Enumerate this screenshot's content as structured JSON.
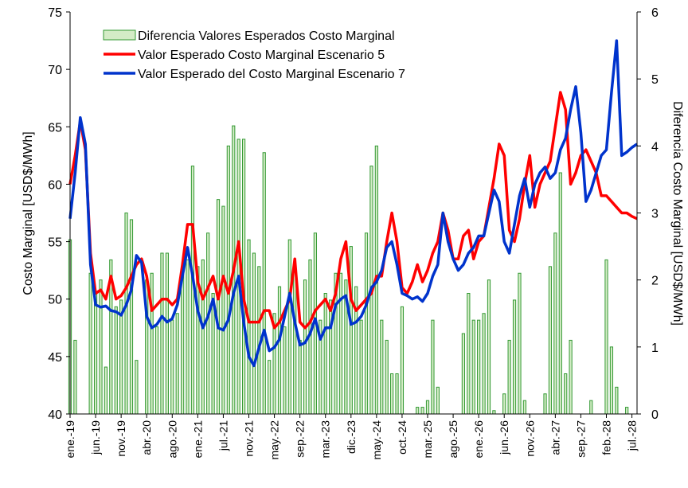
{
  "chart_data": {
    "type": "bar-line",
    "ylabel": "Costo Marginal [USD$/MWh]",
    "y2label": "Diferencia Costo Marginal [USD$/MWh]",
    "ylim": [
      40,
      75
    ],
    "yticks": [
      40,
      45,
      50,
      55,
      60,
      65,
      70,
      75
    ],
    "y2lim": [
      0,
      6
    ],
    "y2ticks": [
      0,
      1,
      2,
      3,
      4,
      5,
      6
    ],
    "grid": false,
    "legend": "upper left",
    "categories": [
      "ene.-19",
      null,
      null,
      null,
      null,
      "jun.-19",
      null,
      null,
      null,
      null,
      "nov.-19",
      null,
      null,
      null,
      null,
      "abr.-20",
      null,
      null,
      null,
      null,
      "ago.-20",
      null,
      null,
      null,
      null,
      "ene.-21",
      null,
      null,
      null,
      null,
      "jul.-21",
      null,
      null,
      null,
      null,
      "nov.-21",
      null,
      null,
      null,
      null,
      "may.-22",
      null,
      null,
      null,
      null,
      "sep.-22",
      null,
      null,
      null,
      null,
      "mar.-23",
      null,
      null,
      null,
      null,
      "dic.-23",
      null,
      null,
      null,
      null,
      "may.-24",
      null,
      null,
      null,
      null,
      "oct.-24",
      null,
      null,
      null,
      null,
      "mar.-25",
      null,
      null,
      null,
      null,
      "ago.-25",
      null,
      null,
      null,
      null,
      "ene.-26",
      null,
      null,
      null,
      null,
      "jun.-26",
      null,
      null,
      null,
      null,
      "nov.-26",
      null,
      null,
      null,
      null,
      "abr.-27",
      null,
      null,
      null,
      null,
      "sep.-27",
      null,
      null,
      null,
      null,
      "feb.-28",
      null,
      null,
      null,
      null,
      "jul.-28",
      null
    ],
    "series": [
      {
        "name": "Diferencia Valores Esperados Costo Marginal",
        "type": "bar",
        "axis": "y2",
        "color": "#339933",
        "values": [
          2.6,
          1.1,
          0,
          0,
          2.1,
          1.8,
          2.0,
          0.7,
          2.3,
          1.6,
          1.7,
          3.0,
          2.9,
          0.8,
          0,
          2.0,
          2.1,
          1.3,
          2.4,
          2.4,
          1.4,
          1.5,
          2.1,
          2.3,
          3.7,
          2.2,
          2.3,
          2.7,
          1.8,
          3.2,
          3.1,
          4.0,
          4.3,
          4.1,
          4.1,
          2.6,
          2.4,
          2.2,
          3.9,
          0.8,
          1.5,
          1.9,
          1.3,
          2.6,
          2.2,
          1.1,
          2.0,
          2.3,
          2.7,
          1.4,
          1.8,
          1.7,
          2.1,
          2.1,
          2.0,
          2.5,
          1.9,
          1.4,
          2.7,
          3.7,
          4.0,
          1.4,
          1.1,
          0.6,
          0.6,
          1.6,
          0,
          0,
          0.1,
          0.1,
          0.2,
          1.4,
          0.4,
          0,
          0,
          0,
          0,
          1.2,
          1.8,
          1.4,
          1.4,
          1.5,
          2.0,
          0.05,
          0,
          0.3,
          1.1,
          1.7,
          2.1,
          0.2,
          0,
          0,
          0,
          0.3,
          2.2,
          2.7,
          3.6,
          0.6,
          1.1,
          0,
          0,
          0,
          0.2,
          0,
          0,
          2.3,
          1.0,
          0.4,
          0,
          0.1,
          0,
          0
        ]
      },
      {
        "name": "Valor Esperado Costo Marginal Escenario 5",
        "type": "line",
        "color": "#ff0000",
        "values": [
          60.0,
          62.5,
          65.5,
          63.0,
          54.0,
          50.5,
          50.8,
          50.0,
          52.0,
          50.0,
          50.3,
          51.0,
          52.0,
          53.0,
          53.5,
          52.0,
          49.0,
          49.5,
          50.0,
          50.0,
          49.5,
          50.0,
          53.0,
          56.5,
          56.5,
          51.5,
          50.0,
          51.0,
          52.0,
          50.0,
          52.0,
          50.5,
          52.5,
          55.0,
          50.0,
          48.0,
          48.0,
          48.0,
          49.0,
          49.0,
          47.5,
          48.0,
          49.0,
          50.0,
          53.5,
          48.0,
          47.5,
          48.0,
          49.0,
          49.5,
          50.0,
          49.0,
          50.5,
          53.5,
          55.0,
          50.0,
          49.0,
          49.5,
          50.0,
          50.5,
          52.0,
          52.0,
          55.0,
          57.5,
          55.0,
          51.0,
          50.5,
          51.5,
          53.0,
          51.5,
          52.5,
          54.0,
          55.0,
          57.5,
          56.0,
          53.5,
          53.5,
          55.5,
          56.0,
          53.5,
          55.0,
          55.5,
          58.0,
          60.5,
          63.5,
          62.5,
          56.0,
          55.0,
          57.0,
          60.0,
          62.5,
          58.0,
          60.0,
          61.0,
          62.0,
          65.0,
          68.0,
          66.5,
          60.0,
          61.0,
          62.5,
          63.0,
          62.0,
          61.0,
          59.0,
          59.0,
          58.5,
          58.0,
          57.5,
          57.5,
          57.2,
          57.0
        ]
      },
      {
        "name": "Valor Esperado del Costo Marginal Escenario 7",
        "type": "line",
        "color": "#0033cc",
        "values": [
          57.0,
          61.0,
          65.8,
          63.5,
          53.0,
          49.5,
          49.3,
          49.4,
          49.0,
          48.9,
          48.6,
          49.5,
          50.8,
          53.8,
          53.2,
          48.5,
          47.5,
          47.8,
          48.5,
          48.0,
          48.3,
          49.5,
          52.0,
          54.5,
          52.0,
          49.0,
          47.5,
          48.5,
          50.0,
          47.5,
          47.3,
          48.2,
          50.5,
          52.0,
          48.0,
          45.0,
          44.2,
          45.8,
          47.3,
          45.5,
          45.8,
          46.5,
          48.5,
          50.5,
          48.0,
          46.0,
          46.2,
          47.0,
          48.3,
          46.5,
          47.5,
          47.5,
          49.5,
          50.0,
          50.3,
          47.8,
          48.0,
          48.5,
          49.5,
          51.0,
          51.5,
          52.5,
          54.5,
          55.0,
          53.0,
          50.5,
          50.3,
          50.0,
          50.2,
          49.8,
          50.5,
          52.0,
          53.0,
          57.5,
          55.0,
          53.5,
          52.5,
          53.0,
          54.0,
          54.5,
          55.5,
          55.5,
          57.5,
          59.5,
          58.5,
          55.0,
          54.0,
          56.5,
          59.0,
          60.5,
          58.0,
          60.0,
          61.0,
          61.5,
          60.5,
          61.0,
          63.0,
          64.0,
          66.5,
          68.5,
          64.5,
          58.5,
          59.5,
          61.0,
          62.5,
          63.0,
          68.0,
          72.5,
          62.5,
          62.8,
          63.2,
          63.5
        ]
      }
    ]
  }
}
